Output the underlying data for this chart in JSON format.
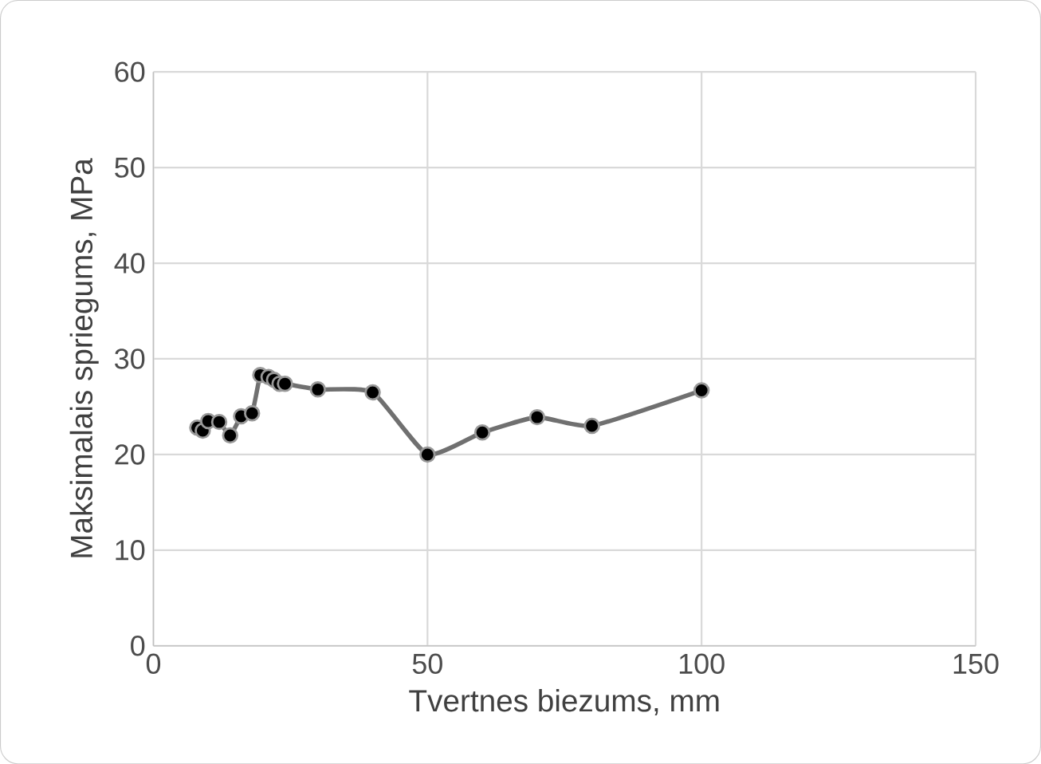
{
  "chart_data": {
    "type": "line",
    "xlabel": "Tvertnes biezums, mm",
    "ylabel": "Maksimalais spriegums, MPa",
    "x": [
      8,
      9,
      10,
      12,
      14,
      16,
      18,
      19.5,
      21,
      22,
      23,
      24,
      30,
      40,
      50,
      60,
      70,
      80,
      100
    ],
    "series": [
      {
        "color": "#707070",
        "values": [
          22.8,
          22.5,
          23.5,
          23.4,
          22.0,
          24.0,
          24.3,
          28.3,
          28.1,
          27.8,
          27.4,
          27.4,
          26.8,
          26.5,
          20.0,
          22.3,
          23.9,
          23.0,
          26.7
        ]
      }
    ],
    "xlim": [
      0,
      150
    ],
    "xticks": [
      0,
      50,
      100,
      150
    ],
    "ylim": [
      0,
      60
    ],
    "yticks": [
      0,
      10,
      20,
      30,
      40,
      50,
      60
    ],
    "grid": true,
    "marker": "circle",
    "line_style": "solid"
  }
}
